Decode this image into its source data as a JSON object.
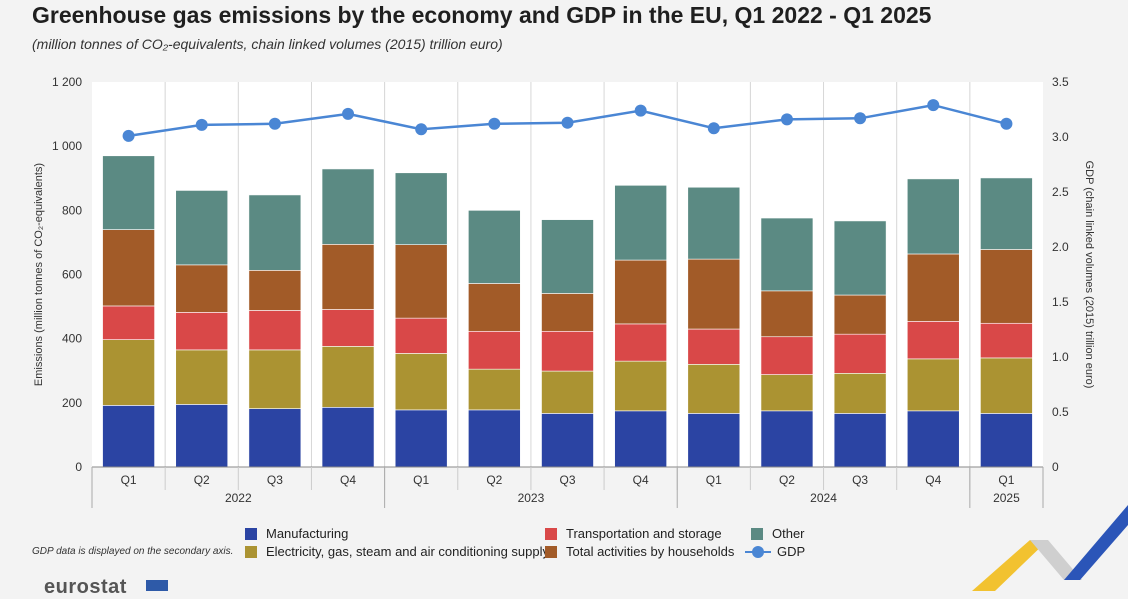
{
  "chart_data": {
    "type": "bar",
    "title": "Greenhouse gas emissions by the economy and GDP in the EU, Q1 2022 - Q1 2025",
    "subtitle": "(million tonnes of CO₂-equivalents, chain linked volumes (2015) trillion euro)",
    "ylabel": "Emissions (million tonnes of CO₂-equivalents)",
    "y2label": "GDP (chain linked volumes (2015) trillion euro)",
    "ylim": [
      0,
      1200
    ],
    "y2lim": [
      0,
      3.5
    ],
    "yticks": [
      "0",
      "200",
      "400",
      "600",
      "800",
      "1 000",
      "1 200"
    ],
    "y2ticks": [
      "0",
      "0.5",
      "1.0",
      "1.5",
      "2.0",
      "2.5",
      "3.0",
      "3.5"
    ],
    "categories": [
      "Q1",
      "Q2",
      "Q3",
      "Q4",
      "Q1",
      "Q2",
      "Q3",
      "Q4",
      "Q1",
      "Q2",
      "Q3",
      "Q4",
      "Q1"
    ],
    "years": [
      {
        "label": "2022",
        "span": 4
      },
      {
        "label": "2023",
        "span": 4
      },
      {
        "label": "2024",
        "span": 4
      },
      {
        "label": "2025",
        "span": 1
      }
    ],
    "series": [
      {
        "name": "Manufacturing",
        "color": "#2b44a3",
        "values": [
          192,
          195,
          182,
          186,
          178,
          178,
          167,
          175,
          167,
          175,
          167,
          175,
          167
        ]
      },
      {
        "name": "Electricity, gas, steam and air conditioning supply",
        "color": "#ab9332",
        "values": [
          205,
          170,
          183,
          190,
          176,
          127,
          132,
          155,
          153,
          113,
          125,
          162,
          173
        ]
      },
      {
        "name": "Transportation and storage",
        "color": "#d94848",
        "values": [
          105,
          117,
          123,
          115,
          110,
          118,
          124,
          116,
          110,
          118,
          122,
          117,
          108
        ]
      },
      {
        "name": "Total activities by households",
        "color": "#a25b28",
        "values": [
          238,
          148,
          125,
          203,
          229,
          149,
          118,
          199,
          218,
          143,
          122,
          210,
          230
        ]
      },
      {
        "name": "Other",
        "color": "#5b8a83",
        "values": [
          230,
          232,
          235,
          235,
          224,
          228,
          230,
          233,
          224,
          227,
          231,
          234,
          223
        ]
      }
    ],
    "line_series": {
      "name": "GDP",
      "color": "#4a86d4",
      "axis": "secondary",
      "values": [
        3.01,
        3.11,
        3.12,
        3.21,
        3.07,
        3.12,
        3.13,
        3.24,
        3.08,
        3.16,
        3.17,
        3.29,
        3.12
      ]
    },
    "legend": [
      "Manufacturing",
      "Electricity, gas, steam and air conditioning supply",
      "Transportation and storage",
      "Total activities by households",
      "Other",
      "GDP"
    ],
    "note": "GDP data is displayed on the secondary axis."
  },
  "branding": {
    "logo": "eurostat"
  }
}
